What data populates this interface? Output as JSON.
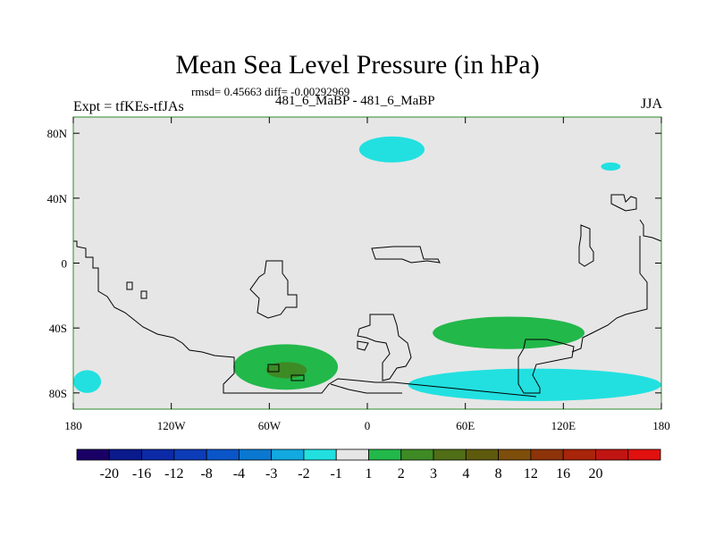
{
  "chart_data": {
    "type": "heatmap",
    "title": "Mean Sea Level Pressure (in hPa)",
    "stats": "rmsd= 0.45663 diff= -0.00292969",
    "left_label": "Expt = tfKEs-tfJAs",
    "center_label": "481_6_MaBP - 481_6_MaBP",
    "right_label": "JJA",
    "x_ticks": [
      "180",
      "120W",
      "60W",
      "0",
      "60E",
      "120E",
      "180"
    ],
    "x_tick_values": [
      -180,
      -120,
      -60,
      0,
      60,
      120,
      180
    ],
    "y_ticks": [
      "80N",
      "40N",
      "0",
      "40S",
      "80S"
    ],
    "y_tick_values": [
      80,
      40,
      0,
      -40,
      -80
    ],
    "xlim": [
      -180,
      180
    ],
    "ylim": [
      -90,
      90
    ],
    "colorbar": {
      "colors": [
        "#1a0066",
        "#0a1a8c",
        "#0c2aa6",
        "#0d3cb8",
        "#0a55c8",
        "#0a78d0",
        "#12a8e0",
        "#22e0e0",
        "#e6e6e6",
        "#22b84a",
        "#3e8a25",
        "#506e15",
        "#5e5a0d",
        "#7e4e0b",
        "#8e3309",
        "#a8240a",
        "#c01512",
        "#e0110f"
      ],
      "labels": [
        "-20",
        "-16",
        "-12",
        "-8",
        "-4",
        "-3",
        "-2",
        "-1",
        "1",
        "2",
        "3",
        "4",
        "8",
        "12",
        "16",
        "20"
      ]
    },
    "regions": [
      {
        "name": "arctic-low",
        "level": "-2 to -1",
        "color": "#22e0e0",
        "lon": [
          -5,
          35
        ],
        "lat": [
          62,
          78
        ]
      },
      {
        "name": "east-siberia-low",
        "level": "-2 to -1",
        "color": "#22e0e0",
        "lon": [
          143,
          155
        ],
        "lat": [
          57,
          62
        ]
      },
      {
        "name": "pacific-southwest-low",
        "level": "-2 to -1",
        "color": "#22e0e0",
        "lon": [
          -180,
          -163
        ],
        "lat": [
          -80,
          -66
        ]
      },
      {
        "name": "southern-ocean-low",
        "level": "-2 to -1",
        "color": "#22e0e0",
        "lon": [
          25,
          180
        ],
        "lat": [
          -85,
          -65
        ]
      },
      {
        "name": "south-atlantic-high",
        "level": "1 to 2",
        "color": "#22b84a",
        "lon": [
          -82,
          -18
        ],
        "lat": [
          -78,
          -50
        ]
      },
      {
        "name": "south-atlantic-high-core",
        "level": "2 to 3",
        "color": "#3e8a25",
        "lon": [
          -62,
          -37
        ],
        "lat": [
          -71,
          -61
        ]
      },
      {
        "name": "indian-ocean-high",
        "level": "1 to 2",
        "color": "#22b84a",
        "lon": [
          40,
          133
        ],
        "lat": [
          -53,
          -33
        ]
      }
    ]
  }
}
